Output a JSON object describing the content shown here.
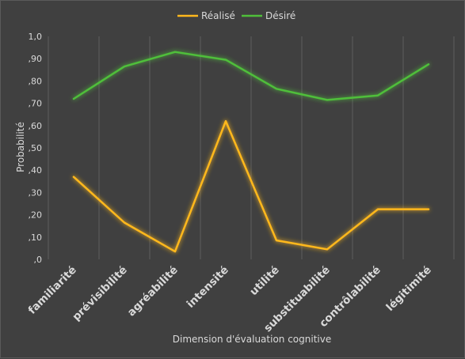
{
  "chart_data": {
    "type": "line",
    "title": "",
    "xlabel": "Dimension d'évaluation cognitive",
    "ylabel": "Probabilité",
    "ylim": [
      0,
      1.0
    ],
    "yticks": [
      0,
      0.1,
      0.2,
      0.3,
      0.4,
      0.5,
      0.6,
      0.7,
      0.8,
      0.9,
      1.0
    ],
    "ytick_labels": [
      ",0",
      ",10",
      ",20",
      ",30",
      ",40",
      ",50",
      ",60",
      ",70",
      ",80",
      ",90",
      "1,0"
    ],
    "categories": [
      "familiarité",
      "prévisibilité",
      "agréabilité",
      "intensité",
      "utilité",
      "substituabilité",
      "contrôlabilité",
      "légitimité"
    ],
    "grid": "vertical",
    "legend_position": "top",
    "series": [
      {
        "name": "Réalisé",
        "color": "#ffb81c",
        "values": [
          0.37,
          0.165,
          0.035,
          0.62,
          0.085,
          0.045,
          0.225,
          0.225
        ]
      },
      {
        "name": "Désiré",
        "color": "#4fbf3a",
        "values": [
          0.72,
          0.865,
          0.93,
          0.895,
          0.765,
          0.715,
          0.735,
          0.875
        ]
      }
    ]
  }
}
